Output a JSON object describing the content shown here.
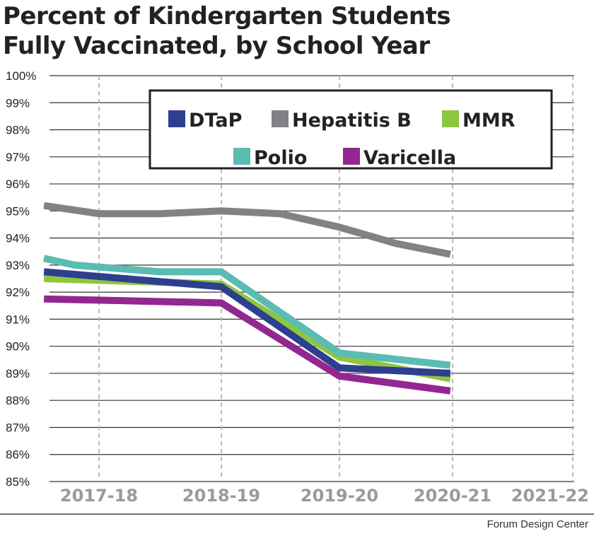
{
  "chart_data": {
    "type": "line",
    "title_line1": "Percent of Kindergarten Students",
    "title_line2": "Fully Vaccinated, by School Year",
    "categories": [
      "2017-18",
      "2018-19",
      "2019-20",
      "2020-21",
      "2021-22"
    ],
    "y_ticks": [
      "85%",
      "86%",
      "87%",
      "88%",
      "89%",
      "90%",
      "91%",
      "92%",
      "93%",
      "94%",
      "95%",
      "96%",
      "97%",
      "98%",
      "99%",
      "100%"
    ],
    "ylim": [
      85,
      100
    ],
    "grid": true,
    "legend_position": "top-right",
    "series": [
      {
        "name": "Hepatitis B",
        "color": "#808285",
        "points": [
          [
            -0.45,
            95.2
          ],
          [
            0,
            94.9
          ],
          [
            0.5,
            94.9
          ],
          [
            1,
            95.0
          ],
          [
            1.5,
            94.9
          ],
          [
            2,
            94.4
          ],
          [
            2.5,
            93.8
          ],
          [
            2.98,
            93.4
          ]
        ]
      },
      {
        "name": "MMR",
        "color": "#8dc63f",
        "points": [
          [
            -0.45,
            92.5
          ],
          [
            1,
            92.3
          ],
          [
            2,
            89.6
          ],
          [
            2.98,
            88.8
          ]
        ]
      },
      {
        "name": "DTaP",
        "color": "#2e3f8f",
        "points": [
          [
            -0.45,
            92.75
          ],
          [
            1,
            92.2
          ],
          [
            2,
            89.2
          ],
          [
            2.98,
            89.0
          ]
        ]
      },
      {
        "name": "Polio",
        "color": "#5bbcb2",
        "points": [
          [
            -0.45,
            93.25
          ],
          [
            -0.2,
            93.0
          ],
          [
            0.5,
            92.75
          ],
          [
            1,
            92.75
          ],
          [
            2,
            89.75
          ],
          [
            2.98,
            89.3
          ]
        ]
      },
      {
        "name": "Varicella",
        "color": "#93278f",
        "points": [
          [
            -0.45,
            91.75
          ],
          [
            1,
            91.6
          ],
          [
            2,
            88.9
          ],
          [
            2.98,
            88.35
          ]
        ]
      }
    ],
    "legend": [
      {
        "name": "DTaP",
        "color": "#2e3f8f"
      },
      {
        "name": "Hepatitis B",
        "color": "#808285"
      },
      {
        "name": "MMR",
        "color": "#8dc63f"
      },
      {
        "name": "Polio",
        "color": "#5bbcb2"
      },
      {
        "name": "Varicella",
        "color": "#93278f"
      }
    ],
    "source": "Forum Design Center"
  }
}
